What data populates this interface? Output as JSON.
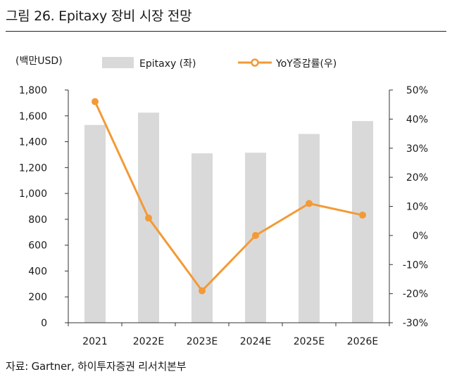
{
  "figure_title": "그림 26. Epitaxy 장비 시장 전망",
  "source": "자료: Gartner, 하이투자증권 리서치본부",
  "colors": {
    "bar": "#d9d9d9",
    "line": "#f39a36",
    "axis": "#333333"
  },
  "chart_data": {
    "type": "bar",
    "categories": [
      "2021",
      "2022E",
      "2023E",
      "2024E",
      "2025E",
      "2026E"
    ],
    "series": [
      {
        "name": "Epitaxy (좌)",
        "type": "bar",
        "axis": "left",
        "values": [
          1530,
          1625,
          1310,
          1315,
          1460,
          1560
        ]
      },
      {
        "name": "YoY증감률(우)",
        "type": "line",
        "axis": "right",
        "values": [
          46,
          6,
          -19,
          0,
          11,
          7
        ]
      }
    ],
    "y_left": {
      "unit_label": "(백만USD)",
      "ylim": [
        0,
        1800
      ],
      "ticks": [
        "1,800",
        "1,600",
        "1,400",
        "1,200",
        "1,000",
        "800",
        "600",
        "400",
        "200",
        "0"
      ]
    },
    "y_right": {
      "ylim": [
        -30,
        50
      ],
      "ticks": [
        "50%",
        "40%",
        "30%",
        "20%",
        "10%",
        "0%",
        "-10%",
        "-20%",
        "-30%"
      ]
    },
    "grid": false,
    "legend_position": "top"
  }
}
